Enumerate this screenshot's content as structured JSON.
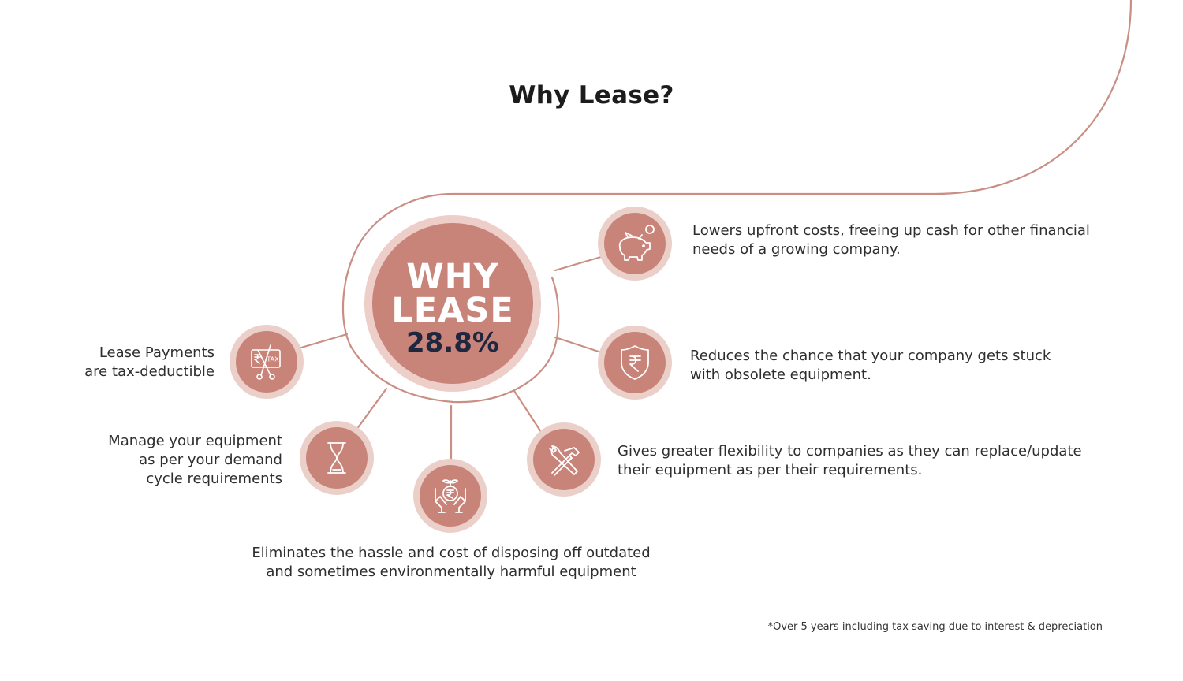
{
  "title": "Why Lease?",
  "center": {
    "line1": "WHY",
    "line2": "LEASE",
    "value": "28.8%"
  },
  "benefits": [
    {
      "icon": "piggy-bank-icon",
      "lines": [
        "Lowers upfront costs, freeing up cash for other financial",
        "needs of a growing company."
      ]
    },
    {
      "icon": "rupee-shield-icon",
      "lines": [
        "Reduces the chance that your company gets stuck",
        "with obsolete equipment."
      ]
    },
    {
      "icon": "hammer-wrench-icon",
      "lines": [
        "Gives greater flexibility to companies as they can replace/update",
        "their equipment as per their requirements."
      ]
    },
    {
      "icon": "hands-rupee-plant-icon",
      "lines": [
        "Eliminates the hassle and cost of disposing off outdated",
        "and sometimes environmentally harmful equipment"
      ]
    },
    {
      "icon": "hourglass-icon",
      "lines": [
        "Manage your equipment",
        "as per your demand",
        "cycle requirements"
      ]
    },
    {
      "icon": "tax-scissors-icon",
      "icon_text": "TAX",
      "lines": [
        "Lease Payments",
        "are tax-deductible"
      ]
    }
  ],
  "footnote": "*Over 5 years including tax saving due to interest & depreciation",
  "colors": {
    "accent": "#c9847a",
    "accent_light": "#ebd0ca",
    "line": "#c98e84",
    "dark": "#1f2640"
  }
}
